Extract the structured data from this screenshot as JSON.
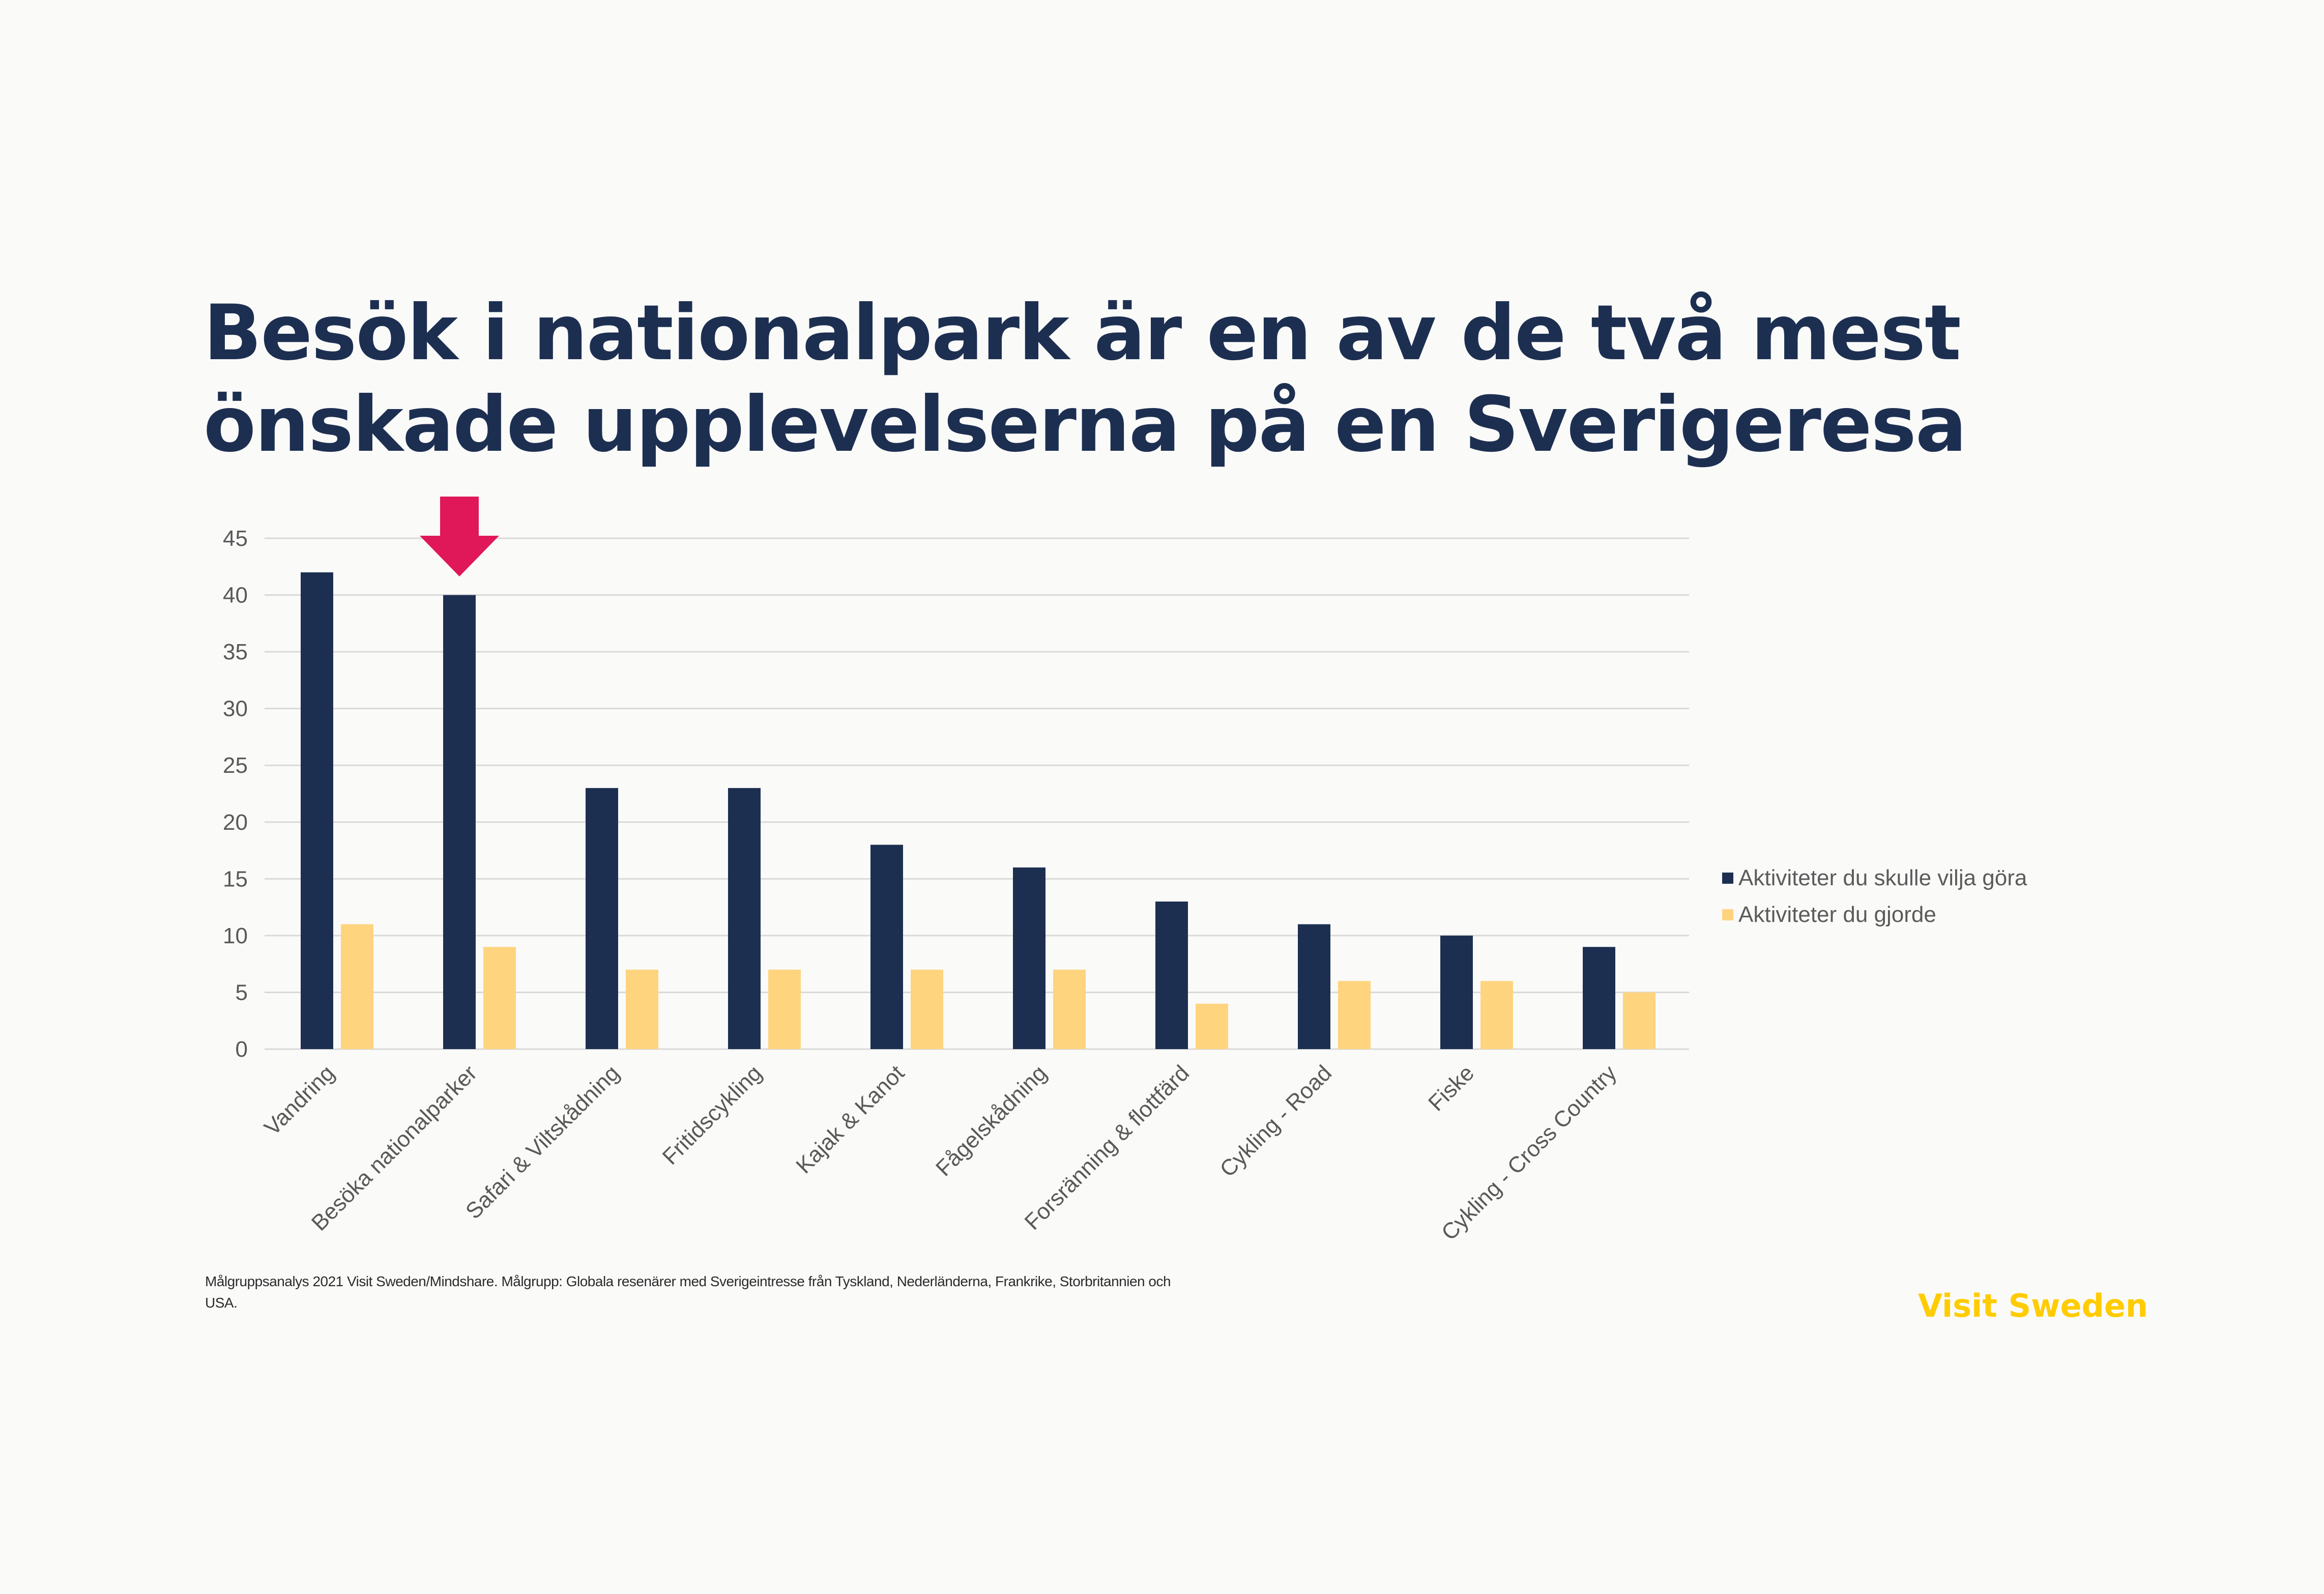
{
  "slide": {
    "title": "Besök i nationalpark är en av de två mest önskade upplevelserna på en Sverigeresa",
    "source": "Målgruppsanalys 2021 Visit Sweden/Mindshare. Målgrupp: Globala resenärer med Sverigeintresse från Tyskland, Nederländerna, Frankrike, Storbritannien och USA.",
    "brand": "Visit Sweden"
  },
  "colors": {
    "background": "#fafaf9",
    "title": "#1d2f51",
    "series_want": "#1d2f51",
    "series_did": "#ffd47f",
    "highlight_arrow": "#e0185a",
    "brand": "#ffcc00",
    "grid": "#d9d9d9",
    "axis_text": "#595959"
  },
  "chart_data": {
    "type": "bar",
    "categories": [
      "Vandring",
      "Besöka nationalparker",
      "Safari & Viltskådning",
      "Fritidscykling",
      "Kajak & Kanot",
      "Fågelskådning",
      "Forsränning & flottfärd",
      "Cykling - Road",
      "Fiske",
      "Cykling - Cross Country"
    ],
    "series": [
      {
        "name": "Aktiviteter du skulle vilja göra",
        "values": [
          42,
          40,
          23,
          23,
          18,
          16,
          13,
          11,
          10,
          9
        ]
      },
      {
        "name": "Aktiviteter du gjorde",
        "values": [
          11,
          9,
          7,
          7,
          7,
          7,
          4,
          6,
          6,
          5
        ]
      }
    ],
    "ylim": [
      0,
      45
    ],
    "yticks": [
      0,
      5,
      10,
      15,
      20,
      25,
      30,
      35,
      40,
      45
    ],
    "grid": true,
    "legend_position": "right",
    "highlight_category": "Besöka nationalparker",
    "highlight_marker": "down-arrow"
  }
}
